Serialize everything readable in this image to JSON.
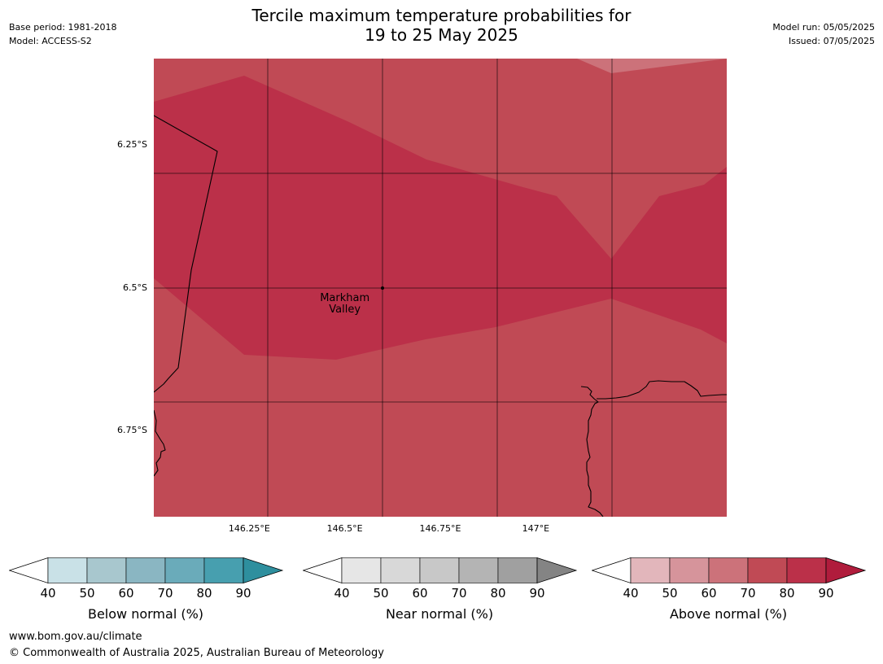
{
  "title": {
    "line1": "Tercile maximum temperature probabilities for",
    "line2": "19 to 25 May 2025"
  },
  "meta_left": {
    "base_period": "Base period: 1981-2018",
    "model": "Model: ACCESS-S2"
  },
  "meta_right": {
    "model_run": "Model run: 05/05/2025",
    "issued": "Issued: 07/05/2025"
  },
  "map": {
    "lon_range": [
      146.0,
      147.5
    ],
    "lat_range": [
      -6.9,
      -6.1
    ],
    "lat_ticks": [
      {
        "value": -6.25,
        "label": "6.25°S"
      },
      {
        "value": -6.5,
        "label": "6.5°S"
      },
      {
        "value": -6.75,
        "label": "6.75°S"
      }
    ],
    "lon_ticks": [
      {
        "value": 146.25,
        "label": "146.25°E"
      },
      {
        "value": 146.5,
        "label": "146.5°E"
      },
      {
        "value": 146.75,
        "label": "146.75°E"
      },
      {
        "value": 147.0,
        "label": "147°E"
      }
    ],
    "place": {
      "line1": "Markham",
      "line2": "Valley",
      "lon": 146.5,
      "lat": -6.5
    },
    "colors": {
      "band_60_70": "#cc727a",
      "band_70_80": "#c04a55",
      "band_80_90": "#bb3049",
      "coast": "#000000",
      "grid": "#000000"
    }
  },
  "colorbars": [
    {
      "label": "Below normal (%)",
      "ticks": [
        "40",
        "50",
        "60",
        "70",
        "80",
        "90"
      ],
      "colors": [
        "#c9e1e7",
        "#a8c7ce",
        "#8ab6c2",
        "#6aabba",
        "#479faf"
      ],
      "extend_color": "#2e8f9e"
    },
    {
      "label": "Near normal (%)",
      "ticks": [
        "40",
        "50",
        "60",
        "70",
        "80",
        "90"
      ],
      "colors": [
        "#e6e6e6",
        "#d8d8d8",
        "#c8c8c8",
        "#b4b4b4",
        "#a0a0a0"
      ],
      "extend_color": "#848484"
    },
    {
      "label": "Above normal (%)",
      "ticks": [
        "40",
        "50",
        "60",
        "70",
        "80",
        "90"
      ],
      "colors": [
        "#e2b6bb",
        "#d6949b",
        "#cc727a",
        "#c04a55",
        "#bb3049"
      ],
      "extend_color": "#b01c3c"
    }
  ],
  "footer": {
    "url": "www.bom.gov.au/climate",
    "copyright": "© Commonwealth of Australia 2025, Australian Bureau of Meteorology"
  }
}
